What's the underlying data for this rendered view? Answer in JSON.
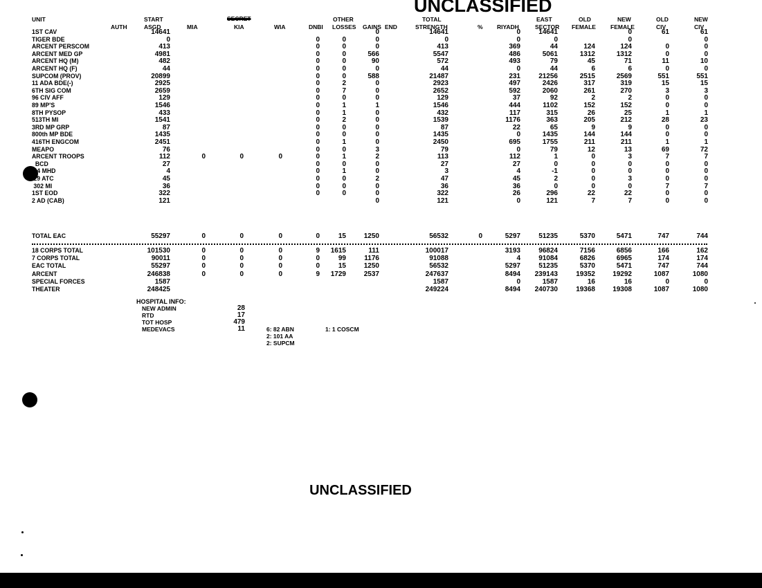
{
  "header": {
    "unit": "UNIT",
    "auth": "AUTH",
    "start_1": "START",
    "start_2": "ASGD",
    "mia": "MIA",
    "classification_struck": "SECRET",
    "kia": "KIA",
    "wia": "WIA",
    "dnbi": "DNBI",
    "other_1": "OTHER",
    "other_2": "LOSSES",
    "gains": "GAINS",
    "end": "END",
    "total_1": "TOTAL",
    "total_2": "STRENGTH",
    "pct": "%",
    "riyadh": "RIYADH",
    "sector_1": "EAST",
    "sector_2": "SECTOR",
    "old_female_1": "OLD",
    "old_female_2": "FEMALE",
    "new_female_1": "NEW",
    "new_female_2": "FEMALE",
    "old_civ_1": "OLD",
    "old_civ_2": "CIV",
    "new_civ_1": "NEW",
    "new_civ_2": "CIV"
  },
  "classification_top": "UNCLASSIFIED",
  "classification_bottom": "UNCLASSIFIED",
  "columns": [
    "unit",
    "auth",
    "start",
    "mia",
    "kia",
    "wia",
    "dnbi",
    "other",
    "gains",
    "end",
    "total",
    "pct",
    "riyadh",
    "sector",
    "old_female",
    "new_female",
    "old_civ",
    "new_civ"
  ],
  "rows": [
    [
      "1ST CAV",
      "",
      "14641",
      "",
      "",
      "",
      "",
      "",
      "0",
      "",
      "14641",
      "",
      "0",
      "14641",
      "",
      "0",
      "61",
      "61"
    ],
    [
      "TIGER BDE",
      "",
      "0",
      "",
      "",
      "",
      "0",
      "0",
      "0",
      "",
      "0",
      "",
      "0",
      "0",
      "",
      "0",
      "",
      "0"
    ],
    [
      "ARCENT PERSCOM",
      "",
      "413",
      "",
      "",
      "",
      "0",
      "0",
      "0",
      "",
      "413",
      "",
      "369",
      "44",
      "124",
      "124",
      "0",
      "0"
    ],
    [
      "ARCENT MED GP",
      "",
      "4981",
      "",
      "",
      "",
      "0",
      "0",
      "566",
      "",
      "5547",
      "",
      "486",
      "5061",
      "1312",
      "1312",
      "0",
      "0"
    ],
    [
      "ARCENT HQ (M)",
      "",
      "482",
      "",
      "",
      "",
      "0",
      "0",
      "90",
      "",
      "572",
      "",
      "493",
      "79",
      "45",
      "71",
      "11",
      "10"
    ],
    [
      "ARCENT HQ (F)",
      "",
      "44",
      "",
      "",
      "",
      "0",
      "0",
      "0",
      "",
      "44",
      "",
      "0",
      "44",
      "6",
      "6",
      "0",
      "0"
    ],
    [
      "SUPCOM (PROV)",
      "",
      "20899",
      "",
      "",
      "",
      "0",
      "0",
      "588",
      "",
      "21487",
      "",
      "231",
      "21256",
      "2515",
      "2569",
      "551",
      "551"
    ],
    [
      "11 ADA BDE(-)",
      "",
      "2925",
      "",
      "",
      "",
      "0",
      "2",
      "0",
      "",
      "2923",
      "",
      "497",
      "2426",
      "317",
      "319",
      "15",
      "15"
    ],
    [
      "6TH SIG COM",
      "",
      "2659",
      "",
      "",
      "",
      "0",
      "7",
      "0",
      "",
      "2652",
      "",
      "592",
      "2060",
      "261",
      "270",
      "3",
      "3"
    ],
    [
      "96 CIV AFF",
      "",
      "129",
      "",
      "",
      "",
      "0",
      "0",
      "0",
      "",
      "129",
      "",
      "37",
      "92",
      "2",
      "2",
      "0",
      "0"
    ],
    [
      "89 MP'S",
      "",
      "1546",
      "",
      "",
      "",
      "0",
      "1",
      "1",
      "",
      "1546",
      "",
      "444",
      "1102",
      "152",
      "152",
      "0",
      "0"
    ],
    [
      "8TH PYSOP",
      "",
      "433",
      "",
      "",
      "",
      "0",
      "1",
      "0",
      "",
      "432",
      "",
      "117",
      "315",
      "26",
      "25",
      "1",
      "1"
    ],
    [
      "513TH MI",
      "",
      "1541",
      "",
      "",
      "",
      "0",
      "2",
      "0",
      "",
      "1539",
      "",
      "1176",
      "363",
      "205",
      "212",
      "28",
      "23"
    ],
    [
      "3RD MP GRP",
      "",
      "87",
      "",
      "",
      "",
      "0",
      "0",
      "0",
      "",
      "87",
      "",
      "22",
      "65",
      "9",
      "9",
      "0",
      "0"
    ],
    [
      "800th MP BDE",
      "",
      "1435",
      "",
      "",
      "",
      "0",
      "0",
      "0",
      "",
      "1435",
      "",
      "0",
      "1435",
      "144",
      "144",
      "0",
      "0"
    ],
    [
      "416TH ENGCOM",
      "",
      "2451",
      "",
      "",
      "",
      "0",
      "1",
      "0",
      "",
      "2450",
      "",
      "695",
      "1755",
      "211",
      "211",
      "1",
      "1"
    ],
    [
      "MEAPO",
      "",
      "76",
      "",
      "",
      "",
      "0",
      "0",
      "3",
      "",
      "79",
      "",
      "0",
      "79",
      "12",
      "13",
      "69",
      "72"
    ],
    [
      "ARCENT TROOPS",
      "",
      "112",
      "0",
      "0",
      "0",
      "0",
      "1",
      "2",
      "",
      "113",
      "",
      "112",
      "1",
      "0",
      "3",
      "7",
      "7"
    ],
    [
      "  BCD",
      "",
      "27",
      "",
      "",
      "",
      "0",
      "0",
      "0",
      "",
      "27",
      "",
      "27",
      "0",
      "0",
      "0",
      "0",
      "0"
    ],
    [
      " 44 MHD",
      "",
      "4",
      "",
      "",
      "",
      "0",
      "1",
      "0",
      "",
      "3",
      "",
      "4",
      "-1",
      "0",
      "0",
      "0",
      "0"
    ],
    [
      " 29 ATC",
      "",
      "45",
      "",
      "",
      "",
      "0",
      "0",
      "2",
      "",
      "47",
      "",
      "45",
      "2",
      "0",
      "3",
      "0",
      "0"
    ],
    [
      " 302 MI",
      "",
      "36",
      "",
      "",
      "",
      "0",
      "0",
      "0",
      "",
      "36",
      "",
      "36",
      "0",
      "0",
      "0",
      "7",
      "7"
    ],
    [
      "1ST EOD",
      "",
      "322",
      "",
      "",
      "",
      "0",
      "0",
      "0",
      "",
      "322",
      "",
      "26",
      "296",
      "22",
      "22",
      "0",
      "0"
    ],
    [
      "2 AD (CAB)",
      "",
      "121",
      "",
      "",
      "",
      "",
      "",
      "0",
      "",
      "121",
      "",
      "0",
      "121",
      "7",
      "7",
      "0",
      "0"
    ]
  ],
  "total_row": [
    "TOTAL EAC",
    "",
    "55297",
    "0",
    "0",
    "0",
    "0",
    "15",
    "1250",
    "",
    "56532",
    "0",
    "5297",
    "51235",
    "5370",
    "5471",
    "747",
    "744"
  ],
  "summary_rows": [
    [
      "18 CORPS TOTAL",
      "",
      "101530",
      "0",
      "0",
      "0",
      "9",
      "1615",
      "111",
      "",
      "100017",
      "",
      "3193",
      "96824",
      "7156",
      "6856",
      "166",
      "162"
    ],
    [
      "7 CORPS TOTAL",
      "",
      "90011",
      "0",
      "0",
      "0",
      "0",
      "99",
      "1176",
      "",
      "91088",
      "",
      "4",
      "91084",
      "6826",
      "6965",
      "174",
      "174"
    ],
    [
      "EAC TOTAL",
      "",
      "55297",
      "0",
      "0",
      "0",
      "0",
      "15",
      "1250",
      "",
      "56532",
      "",
      "5297",
      "51235",
      "5370",
      "5471",
      "747",
      "744"
    ],
    [
      "ARCENT",
      "",
      "246838",
      "0",
      "0",
      "0",
      "9",
      "1729",
      "2537",
      "",
      "247637",
      "",
      "8494",
      "239143",
      "19352",
      "19292",
      "1087",
      "1080"
    ],
    [
      "SPECIAL FORCES",
      "",
      "1587",
      "",
      "",
      "",
      "",
      "",
      "",
      "",
      "1587",
      "",
      "0",
      "1587",
      "16",
      "16",
      "0",
      "0"
    ],
    [
      "THEATER",
      "",
      "248425",
      "",
      "",
      "",
      "",
      "",
      "",
      "",
      "249224",
      "",
      "8494",
      "240730",
      "19368",
      "19308",
      "1087",
      "1080"
    ]
  ],
  "hospital": {
    "title": "HOSPITAL INFO:",
    "items": [
      {
        "label": "NEW ADMIN",
        "value": "28"
      },
      {
        "label": "RTD",
        "value": "17"
      },
      {
        "label": "TOT HOSP",
        "value": "479"
      },
      {
        "label": "MEDEVACS",
        "value": "11"
      }
    ]
  },
  "medevac_notes": [
    "6: 82 ABN",
    "2: 101 AA",
    "2: SUPCM"
  ],
  "medevac_notes_2": [
    "1: 1 COSCM"
  ]
}
